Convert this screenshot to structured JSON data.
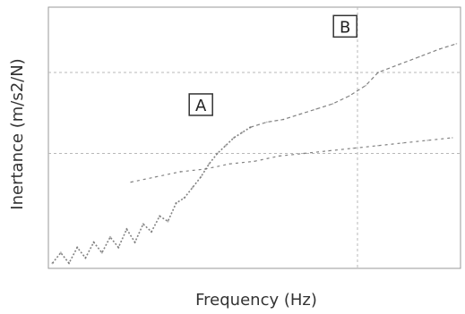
{
  "chart_data": {
    "type": "line",
    "title": "",
    "xlabel": "Frequency (Hz)",
    "ylabel": "Inertance (m/s2/N)",
    "grid": true,
    "series": [
      {
        "values": [
          [
            0.01,
            0.02
          ],
          [
            0.03,
            0.06
          ],
          [
            0.05,
            0.02
          ],
          [
            0.07,
            0.08
          ],
          [
            0.09,
            0.04
          ],
          [
            0.11,
            0.1
          ],
          [
            0.13,
            0.06
          ],
          [
            0.15,
            0.12
          ],
          [
            0.17,
            0.08
          ],
          [
            0.19,
            0.15
          ],
          [
            0.21,
            0.1
          ],
          [
            0.23,
            0.17
          ],
          [
            0.25,
            0.14
          ],
          [
            0.27,
            0.2
          ],
          [
            0.29,
            0.18
          ],
          [
            0.31,
            0.25
          ],
          [
            0.33,
            0.27
          ],
          [
            0.35,
            0.31
          ],
          [
            0.37,
            0.35
          ],
          [
            0.39,
            0.4
          ],
          [
            0.41,
            0.44
          ],
          [
            0.43,
            0.47
          ],
          [
            0.45,
            0.5
          ],
          [
            0.47,
            0.52
          ],
          [
            0.49,
            0.54
          ]
        ]
      },
      {
        "values": [
          [
            0.49,
            0.54
          ],
          [
            0.53,
            0.56
          ],
          [
            0.57,
            0.57
          ],
          [
            0.61,
            0.59
          ],
          [
            0.65,
            0.61
          ],
          [
            0.69,
            0.63
          ],
          [
            0.73,
            0.66
          ],
          [
            0.77,
            0.7
          ],
          [
            0.8,
            0.75
          ],
          [
            0.85,
            0.78
          ],
          [
            0.9,
            0.81
          ],
          [
            0.95,
            0.84
          ],
          [
            0.99,
            0.86
          ]
        ]
      },
      {
        "values": [
          [
            0.2,
            0.33
          ],
          [
            0.26,
            0.35
          ],
          [
            0.32,
            0.37
          ],
          [
            0.38,
            0.38
          ],
          [
            0.44,
            0.4
          ],
          [
            0.5,
            0.41
          ],
          [
            0.56,
            0.43
          ],
          [
            0.62,
            0.44
          ],
          [
            0.68,
            0.45
          ],
          [
            0.74,
            0.46
          ],
          [
            0.8,
            0.47
          ],
          [
            0.86,
            0.48
          ],
          [
            0.92,
            0.49
          ],
          [
            0.98,
            0.5
          ]
        ]
      }
    ],
    "annotations": [
      {
        "label": "A",
        "x": 0.37,
        "y": 0.62
      },
      {
        "label": "B",
        "x": 0.72,
        "y": 0.92
      }
    ],
    "colors": {
      "axis": "#9a9a9a",
      "grid": "#b8b8b8",
      "line": "#6d6d6d",
      "box": "#333333"
    }
  }
}
